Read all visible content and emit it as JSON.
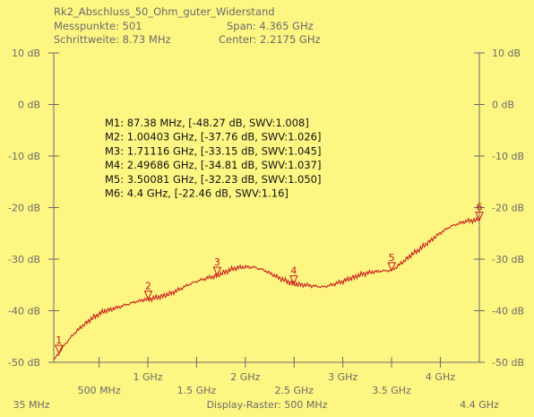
{
  "header": {
    "title": "Rk2_Abschluss_50_Ohm_guter_Widerstand",
    "points": "Messpunkte:  501",
    "step": "Schrittweite: 8.73 MHz",
    "span": "Span: 4.365 GHz",
    "center": "Center: 2.2175 GHz"
  },
  "footer": {
    "start": "35 MHz",
    "raster": "Display-Raster: 500 MHz",
    "stop": "4.4 GHz"
  },
  "colors": {
    "background": "#fdf682",
    "trace": "#c8141a",
    "axis": "#6b6b6b",
    "marker_text": "#111111"
  },
  "chart_data": {
    "type": "line",
    "title": "Rk2_Abschluss_50_Ohm_guter_Widerstand",
    "xlim": [
      35,
      4400
    ],
    "ylim": [
      -50,
      10
    ],
    "x_unit": "MHz",
    "y_unit": "dB",
    "grid": false,
    "y_ticks": [
      "10 dB",
      "0 dB",
      "-10 dB",
      "-20 dB",
      "-30 dB",
      "-40 dB",
      "-50 dB"
    ],
    "y_tick_values": [
      10,
      0,
      -10,
      -20,
      -30,
      -40,
      -50
    ],
    "x_ticks_lower": [
      "500 MHz",
      "1.5 GHz",
      "2.5 GHz",
      "3.5 GHz"
    ],
    "x_ticks_lower_values": [
      500,
      1500,
      2500,
      3500
    ],
    "x_ticks_upper": [
      "1 GHz",
      "2 GHz",
      "3 GHz",
      "4 GHz"
    ],
    "x_ticks_upper_values": [
      1000,
      2000,
      3000,
      4000
    ],
    "series": [
      {
        "x": [
          35,
          87,
          150,
          250,
          350,
          450,
          550,
          650,
          750,
          850,
          950,
          1004,
          1100,
          1200,
          1300,
          1400,
          1500,
          1600,
          1711,
          1800,
          1900,
          2000,
          2100,
          2200,
          2300,
          2400,
          2497,
          2600,
          2700,
          2800,
          2900,
          3000,
          3100,
          3200,
          3300,
          3400,
          3501,
          3600,
          3700,
          3800,
          3900,
          4000,
          4100,
          4200,
          4300,
          4400
        ],
        "y": [
          -49.5,
          -48.3,
          -46.5,
          -44.3,
          -42.6,
          -41.2,
          -40.1,
          -39.6,
          -39.0,
          -38.4,
          -37.9,
          -37.8,
          -37.4,
          -36.9,
          -36.1,
          -35.1,
          -34.3,
          -33.7,
          -33.2,
          -32.4,
          -31.7,
          -31.5,
          -31.6,
          -32.2,
          -33.2,
          -34.1,
          -34.8,
          -35.0,
          -35.2,
          -35.4,
          -34.9,
          -34.3,
          -33.6,
          -32.9,
          -32.5,
          -32.3,
          -32.2,
          -30.8,
          -29.2,
          -27.9,
          -26.4,
          -24.9,
          -23.7,
          -23.0,
          -22.5,
          -22.5
        ]
      }
    ],
    "markers": [
      {
        "label": "1",
        "x": 87.38,
        "y": -48.27,
        "text": "M1: 87.38 MHz, [-48.27 dB, SWV:1.008]"
      },
      {
        "label": "2",
        "x": 1004.03,
        "y": -37.76,
        "text": "M2: 1.00403 GHz, [-37.76 dB, SWV:1.026]"
      },
      {
        "label": "3",
        "x": 1711.16,
        "y": -33.15,
        "text": "M3: 1.71116 GHz, [-33.15 dB, SWV:1.045]"
      },
      {
        "label": "4",
        "x": 2496.86,
        "y": -34.81,
        "text": "M4: 2.49686 GHz, [-34.81 dB, SWV:1.037]"
      },
      {
        "label": "5",
        "x": 3500.81,
        "y": -32.23,
        "text": "M5: 3.50081 GHz, [-32.23 dB, SWV:1.050]"
      },
      {
        "label": "6",
        "x": 4400,
        "y": -22.46,
        "text": "M6: 4.4 GHz, [-22.46 dB, SWV:1.16]"
      }
    ]
  }
}
